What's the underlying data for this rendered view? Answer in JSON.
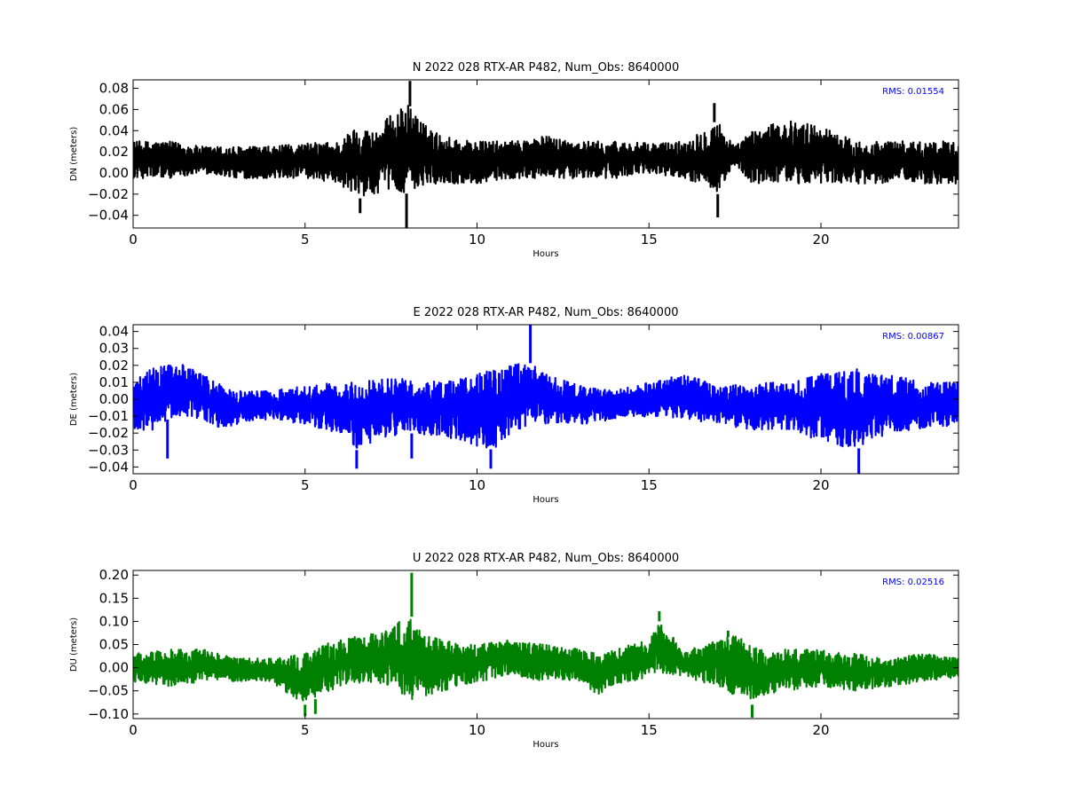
{
  "chart_data": [
    {
      "type": "line",
      "component": "N",
      "title": "N 2022 028 RTX-AR  P482, Num_Obs: 8640000",
      "xlabel": "Hours",
      "ylabel": "DN (meters)",
      "xlim": [
        0,
        24
      ],
      "ylim": [
        -0.052,
        0.088
      ],
      "xticks": [
        0,
        5,
        10,
        15,
        20
      ],
      "yticks": [
        -0.04,
        -0.02,
        0.0,
        0.02,
        0.04,
        0.06,
        0.08
      ],
      "ytick_decimals": 2,
      "rms_label": "RMS:  0.01554",
      "color": "#000000",
      "annotation_color": "#0000ff",
      "grid": false,
      "envelope": {
        "x": [
          0,
          1,
          2,
          3,
          4,
          5,
          6,
          6.5,
          7,
          7.5,
          8,
          8.5,
          9,
          10,
          11,
          12,
          13,
          14,
          15,
          16,
          16.5,
          17,
          17.5,
          18,
          19,
          20,
          21,
          22,
          23,
          24
        ],
        "upper": [
          0.03,
          0.03,
          0.025,
          0.025,
          0.025,
          0.028,
          0.03,
          0.045,
          0.04,
          0.055,
          0.065,
          0.045,
          0.035,
          0.03,
          0.03,
          0.035,
          0.03,
          0.03,
          0.028,
          0.03,
          0.04,
          0.05,
          0.025,
          0.04,
          0.05,
          0.045,
          0.03,
          0.03,
          0.03,
          0.03
        ],
        "lower": [
          -0.005,
          -0.005,
          0.0,
          -0.005,
          -0.005,
          -0.005,
          -0.01,
          -0.025,
          -0.02,
          -0.015,
          -0.02,
          -0.01,
          -0.01,
          -0.01,
          -0.005,
          -0.005,
          -0.005,
          -0.005,
          0.0,
          -0.005,
          -0.01,
          -0.02,
          0.005,
          -0.01,
          -0.01,
          -0.01,
          -0.01,
          -0.01,
          -0.01,
          -0.01
        ]
      },
      "spikes": [
        {
          "x": 8.05,
          "y": 0.087
        },
        {
          "x": 7.95,
          "y": -0.052
        },
        {
          "x": 17.0,
          "y": -0.042
        },
        {
          "x": 6.6,
          "y": -0.038
        },
        {
          "x": 16.9,
          "y": 0.066
        }
      ]
    },
    {
      "type": "line",
      "component": "E",
      "title": "E 2022 028 RTX-AR  P482, Num_Obs: 8640000",
      "xlabel": "Hours",
      "ylabel": "DE (meters)",
      "xlim": [
        0,
        24
      ],
      "ylim": [
        -0.044,
        0.044
      ],
      "xticks": [
        0,
        5,
        10,
        15,
        20
      ],
      "yticks": [
        -0.04,
        -0.03,
        -0.02,
        -0.01,
        0.0,
        0.01,
        0.02,
        0.03,
        0.04
      ],
      "ytick_decimals": 2,
      "rms_label": "RMS:  0.00867",
      "color": "#0000ff",
      "annotation_color": "#0000ff",
      "grid": false,
      "envelope": {
        "x": [
          0,
          0.5,
          1,
          1.5,
          2,
          2.5,
          3,
          4,
          5,
          6,
          6.5,
          7,
          8,
          9,
          10,
          10.5,
          11,
          11.5,
          12,
          13,
          14,
          15,
          16,
          17,
          18,
          19,
          20,
          21,
          22,
          23,
          24
        ],
        "upper": [
          0.01,
          0.018,
          0.022,
          0.02,
          0.015,
          0.01,
          0.005,
          0.005,
          0.008,
          0.01,
          0.012,
          0.012,
          0.012,
          0.01,
          0.015,
          0.018,
          0.02,
          0.022,
          0.015,
          0.008,
          0.005,
          0.01,
          0.015,
          0.008,
          0.01,
          0.01,
          0.015,
          0.018,
          0.015,
          0.01,
          0.01
        ],
        "lower": [
          -0.018,
          -0.02,
          -0.012,
          -0.01,
          -0.012,
          -0.018,
          -0.015,
          -0.012,
          -0.015,
          -0.02,
          -0.03,
          -0.025,
          -0.02,
          -0.022,
          -0.028,
          -0.03,
          -0.02,
          -0.015,
          -0.015,
          -0.015,
          -0.012,
          -0.01,
          -0.012,
          -0.015,
          -0.018,
          -0.018,
          -0.025,
          -0.03,
          -0.02,
          -0.018,
          -0.015
        ]
      },
      "spikes": [
        {
          "x": 11.55,
          "y": 0.044
        },
        {
          "x": 21.1,
          "y": -0.044
        },
        {
          "x": 10.4,
          "y": -0.041
        },
        {
          "x": 6.5,
          "y": -0.041
        },
        {
          "x": 1.0,
          "y": -0.035
        },
        {
          "x": 8.1,
          "y": -0.035
        }
      ]
    },
    {
      "type": "line",
      "component": "U",
      "title": "U 2022 028 RTX-AR  P482, Num_Obs: 8640000",
      "xlabel": "Hours",
      "ylabel": "DU (meters)",
      "xlim": [
        0,
        24
      ],
      "ylim": [
        -0.11,
        0.21
      ],
      "xticks": [
        0,
        5,
        10,
        15,
        20
      ],
      "yticks": [
        -0.1,
        -0.05,
        0.0,
        0.05,
        0.1,
        0.15,
        0.2
      ],
      "ytick_decimals": 2,
      "rms_label": "RMS:  0.02516",
      "color": "#008000",
      "annotation_color": "#0000ff",
      "grid": false,
      "envelope": {
        "x": [
          0,
          1,
          2,
          3,
          4,
          5,
          5.5,
          6,
          7,
          7.5,
          8,
          8.5,
          9,
          10,
          11,
          12,
          13,
          13.5,
          14,
          15,
          15.3,
          16,
          17,
          17.5,
          18,
          18.5,
          19,
          20,
          21,
          22,
          23,
          24
        ],
        "upper": [
          0.03,
          0.04,
          0.04,
          0.02,
          0.02,
          0.03,
          0.05,
          0.06,
          0.08,
          0.08,
          0.12,
          0.07,
          0.06,
          0.05,
          0.06,
          0.05,
          0.04,
          0.03,
          0.04,
          0.06,
          0.1,
          0.04,
          0.06,
          0.07,
          0.05,
          0.03,
          0.04,
          0.04,
          0.03,
          0.02,
          0.03,
          0.02
        ],
        "lower": [
          -0.03,
          -0.04,
          -0.03,
          -0.03,
          -0.03,
          -0.08,
          -0.06,
          -0.04,
          -0.03,
          -0.04,
          -0.07,
          -0.06,
          -0.05,
          -0.03,
          -0.02,
          -0.03,
          -0.03,
          -0.06,
          -0.04,
          -0.02,
          -0.01,
          -0.02,
          -0.04,
          -0.06,
          -0.08,
          -0.06,
          -0.05,
          -0.04,
          -0.05,
          -0.04,
          -0.03,
          -0.02
        ]
      },
      "spikes": [
        {
          "x": 8.1,
          "y": 0.205
        },
        {
          "x": 15.3,
          "y": 0.122
        },
        {
          "x": 18.0,
          "y": -0.108
        },
        {
          "x": 5.0,
          "y": -0.105
        },
        {
          "x": 5.3,
          "y": -0.1
        },
        {
          "x": 17.3,
          "y": 0.08
        }
      ]
    }
  ]
}
